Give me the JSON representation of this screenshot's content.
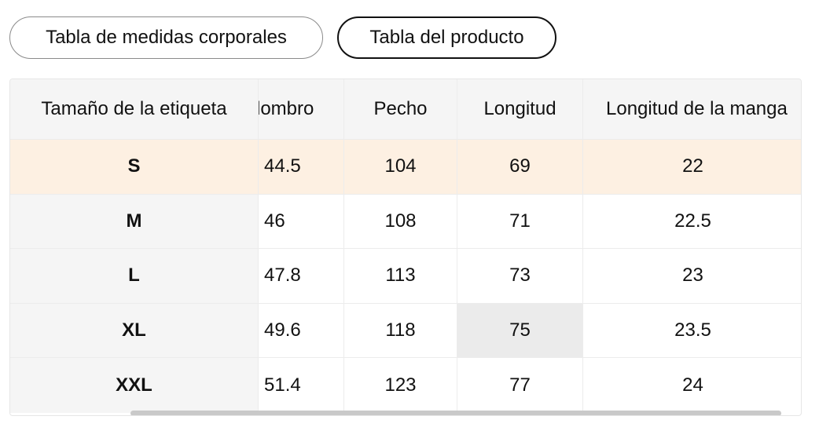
{
  "tabs": {
    "body_measurements": "Tabla de medidas corporales",
    "product": "Tabla del producto"
  },
  "table": {
    "headers": [
      "Tamaño de la etiqueta",
      "lombro",
      "Pecho",
      "Longitud",
      "Longitud de la manga"
    ],
    "rows": [
      [
        "S",
        "44.5",
        "104",
        "69",
        "22"
      ],
      [
        "M",
        "46",
        "108",
        "71",
        "22.5"
      ],
      [
        "L",
        "47.8",
        "113",
        "73",
        "23"
      ],
      [
        "XL",
        "49.6",
        "118",
        "75",
        "23.5"
      ],
      [
        "XXL",
        "51.4",
        "123",
        "77",
        "24"
      ]
    ]
  },
  "colors": {
    "highlight_row": "#fdf0e2",
    "header_bg": "#f5f5f5",
    "hover_cell": "#ebebeb"
  }
}
